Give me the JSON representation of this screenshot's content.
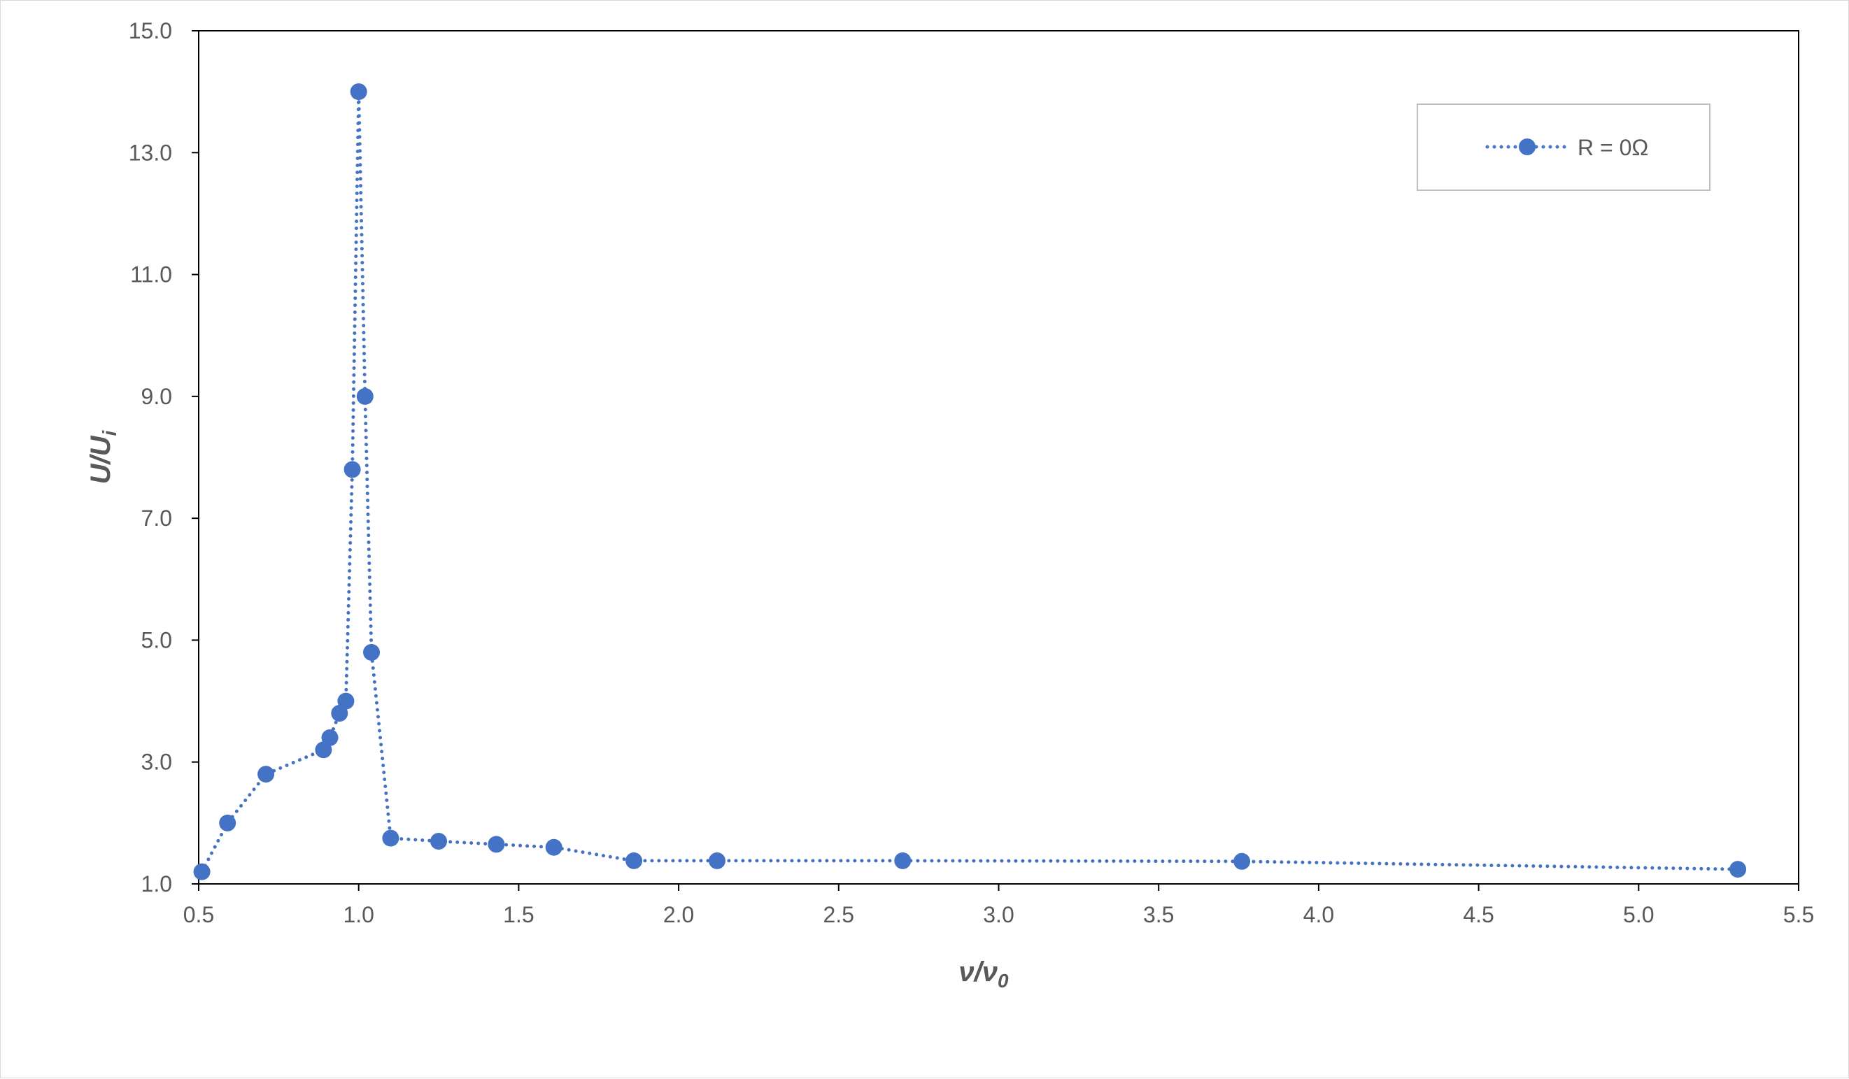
{
  "chart_data": {
    "type": "line",
    "title": "",
    "xlabel": {
      "main": "ν/ν",
      "sub": "0"
    },
    "ylabel": {
      "main": "U/U",
      "sub": "i"
    },
    "xlim": [
      0.5,
      5.5
    ],
    "ylim": [
      1.0,
      15.0
    ],
    "xticks": [
      "0.5",
      "1.0",
      "1.5",
      "2.0",
      "2.5",
      "3.0",
      "3.5",
      "4.0",
      "4.5",
      "5.0",
      "5.5"
    ],
    "yticks": [
      "1.0",
      "3.0",
      "5.0",
      "7.0",
      "9.0",
      "11.0",
      "13.0",
      "15.0"
    ],
    "grid": false,
    "legend_position": "top-right",
    "series": [
      {
        "name": "R = 0Ω",
        "color": "#4472c4",
        "line_style": "dotted",
        "marker": "circle",
        "x": [
          0.51,
          0.59,
          0.71,
          0.89,
          0.91,
          0.94,
          0.96,
          0.98,
          1.0,
          1.02,
          1.04,
          1.1,
          1.25,
          1.43,
          1.61,
          1.86,
          2.12,
          2.7,
          3.76,
          5.31
        ],
        "y": [
          1.2,
          2.0,
          2.8,
          3.2,
          3.4,
          3.8,
          4.0,
          7.8,
          14.0,
          9.0,
          4.8,
          1.75,
          1.7,
          1.65,
          1.6,
          1.38,
          1.38,
          1.38,
          1.37,
          1.24
        ]
      }
    ]
  }
}
